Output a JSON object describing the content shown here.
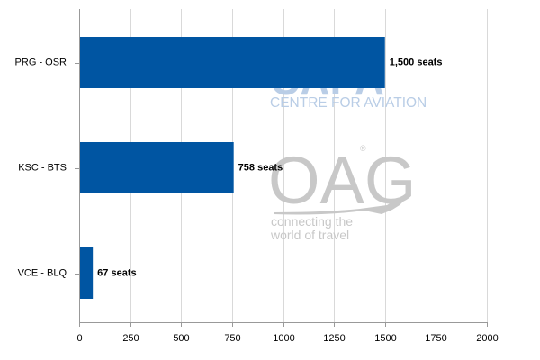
{
  "chart_data": {
    "type": "bar",
    "orientation": "horizontal",
    "categories": [
      "PRG - OSR",
      "KSC - BTS",
      "VCE - BLQ"
    ],
    "values": [
      1500,
      758,
      67
    ],
    "data_labels": [
      "1,500 seats",
      "758 seats",
      "67 seats"
    ],
    "xlim": [
      0,
      2000
    ],
    "xticks": [
      0,
      250,
      500,
      750,
      1000,
      1250,
      1500,
      1750,
      2000
    ],
    "title": "",
    "xlabel": "",
    "ylabel": "",
    "grid": "vertical",
    "bar_color": "#0055a2"
  },
  "watermarks": {
    "capa_logo": "CAPA",
    "capa_text": "CENTRE FOR AVIATION",
    "oag_logo": "OAG",
    "oag_registered": "®",
    "oag_tagline_1": "connecting the",
    "oag_tagline_2": "world of travel"
  }
}
